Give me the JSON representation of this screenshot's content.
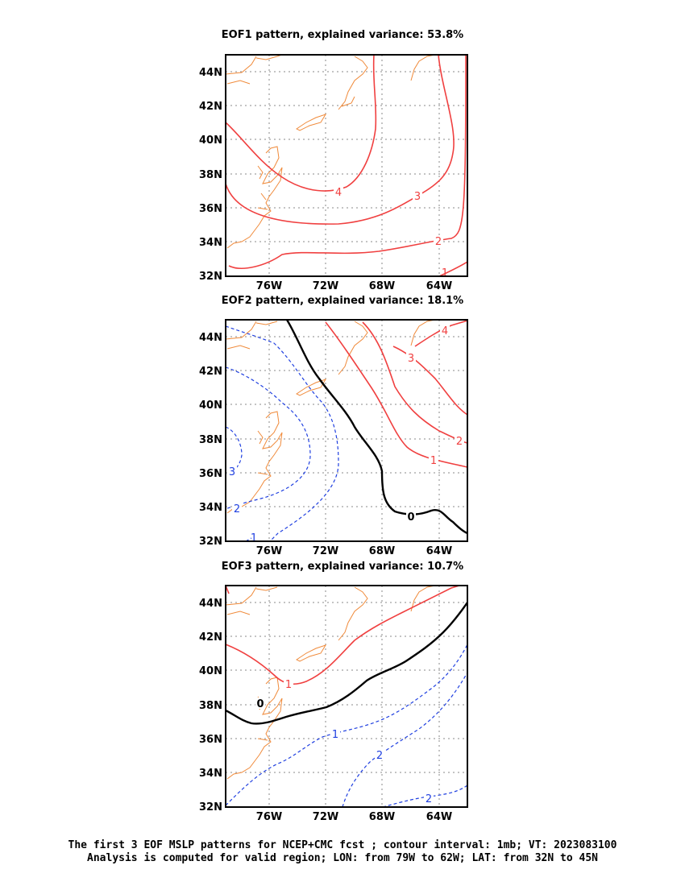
{
  "colors": {
    "positive": "#f04040",
    "negative": "#2040e0",
    "zero": "#000000",
    "coast": "#f08a3a",
    "grid": "#888888"
  },
  "axes": {
    "lat_ticks": [
      "32N",
      "34N",
      "36N",
      "38N",
      "40N",
      "42N",
      "44N"
    ],
    "lon_ticks": [
      "76W",
      "72W",
      "68W",
      "64W"
    ]
  },
  "panels": [
    {
      "title": "EOF1 pattern, explained variance: 53.8%",
      "contour_labels": [
        "4",
        "3",
        "2",
        "1"
      ]
    },
    {
      "title": "EOF2 pattern, explained variance: 18.1%",
      "contour_labels": [
        "4",
        "3",
        "2",
        "1",
        "0",
        "1",
        "2",
        "3"
      ]
    },
    {
      "title": "EOF3 pattern, explained variance: 10.7%",
      "contour_labels": [
        "1",
        "0",
        "1",
        "2",
        "2"
      ]
    }
  ],
  "caption": {
    "line1": "The first 3 EOF MSLP patterns for NCEP+CMC fcst ; contour interval: 1mb; VT: 2023083100",
    "line2": "Analysis is computed for valid region; LON: from 79W to 62W; LAT: from 32N to 45N"
  }
}
